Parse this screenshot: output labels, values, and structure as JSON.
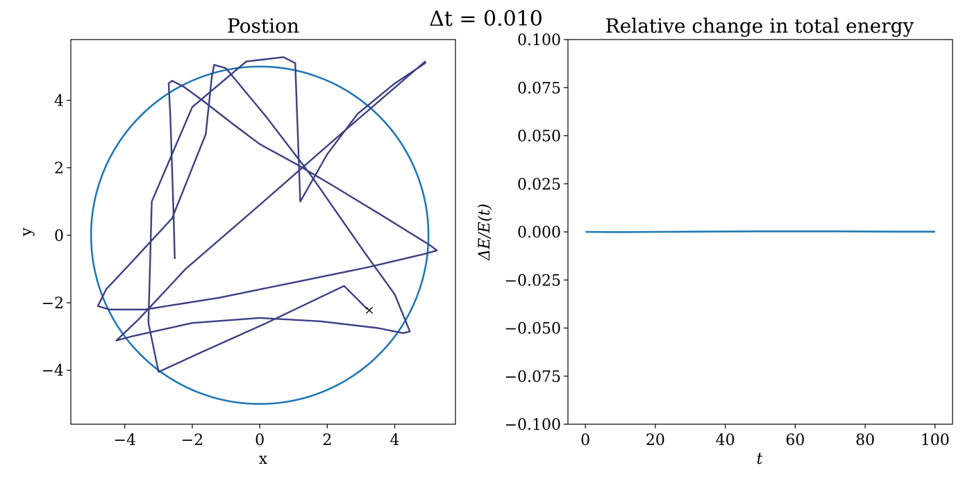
{
  "suptitle": "Δt = 0.010",
  "chart_data": [
    {
      "type": "line",
      "title": "Postion",
      "xlabel": "x",
      "ylabel": "y",
      "xlim": [
        -5.6,
        5.8
      ],
      "ylim": [
        -5.6,
        5.8
      ],
      "xticks": [
        -4,
        -2,
        0,
        2,
        4
      ],
      "yticks": [
        -4,
        -2,
        0,
        2,
        4
      ],
      "tick_labels_x": [
        "−4",
        "−2",
        "0",
        "2",
        "4"
      ],
      "tick_labels_y": [
        "−4",
        "−2",
        "0",
        "2",
        "4"
      ],
      "grid": false,
      "series": [
        {
          "kind": "circle",
          "color": "#1f77b4",
          "center": [
            0,
            0
          ],
          "radius": 5.0
        },
        {
          "kind": "trajectory",
          "color": "#3b3f82",
          "x": [
            -2.52,
            -2.55,
            -2.6,
            -2.65,
            -2.7,
            -2.6,
            -2.25,
            -1.7,
            -0.8,
            0.0,
            1.1,
            2.2,
            3.6,
            5.05,
            5.25,
            4.9,
            3.2,
            1.0,
            -1.2,
            -3.4,
            -4.45,
            -4.8,
            -4.55,
            -3.8,
            -2.6,
            -1.6,
            -1.42,
            -1.35,
            -1.0,
            0.2,
            1.5,
            3.1,
            4.0,
            4.45,
            4.25,
            3.5,
            1.8,
            0.0,
            -2.0,
            -3.8,
            -4.25,
            -3.6,
            -2.2,
            0.0,
            2.4,
            4.9,
            4.9,
            4.0,
            2.9,
            2.0,
            1.2,
            1.05,
            0.7,
            -0.4,
            -2.0,
            -3.2,
            -3.3,
            -3.0,
            -1.8,
            0.2,
            2.5,
            3.2
          ],
          "y": [
            -0.7,
            0.5,
            2.0,
            3.5,
            4.5,
            4.58,
            4.4,
            4.0,
            3.3,
            2.7,
            2.1,
            1.45,
            0.6,
            -0.3,
            -0.45,
            -0.55,
            -0.95,
            -1.4,
            -1.85,
            -2.2,
            -2.2,
            -2.1,
            -1.6,
            -0.8,
            0.5,
            3.0,
            4.7,
            5.05,
            4.95,
            3.5,
            1.8,
            -0.5,
            -1.75,
            -2.85,
            -2.9,
            -2.75,
            -2.55,
            -2.45,
            -2.6,
            -3.0,
            -3.12,
            -2.5,
            -1.0,
            0.9,
            3.0,
            5.15,
            5.1,
            4.5,
            3.6,
            2.4,
            1.0,
            5.1,
            5.28,
            5.15,
            3.8,
            1.0,
            -2.6,
            -4.05,
            -3.5,
            -2.6,
            -1.5,
            -2.2
          ],
          "end_marker": {
            "x": 3.25,
            "y": -2.22,
            "symbol": "×",
            "color": "#d62728"
          }
        }
      ]
    },
    {
      "type": "line",
      "title": "Relative change in total energy",
      "xlabel": "t",
      "ylabel": "ΔE/E(t)",
      "xlim": [
        -5,
        105
      ],
      "ylim": [
        -0.1,
        0.1
      ],
      "xticks": [
        0,
        20,
        40,
        60,
        80,
        100
      ],
      "yticks": [
        -0.1,
        -0.075,
        -0.05,
        -0.025,
        0.0,
        0.025,
        0.05,
        0.075,
        0.1
      ],
      "tick_labels_x": [
        "0",
        "20",
        "40",
        "60",
        "80",
        "100"
      ],
      "tick_labels_y": [
        "−0.100",
        "−0.075",
        "−0.050",
        "−0.025",
        "0.000",
        "0.025",
        "0.050",
        "0.075",
        "0.100"
      ],
      "grid": false,
      "series": [
        {
          "color": "#1f77b4",
          "x": [
            0,
            10,
            20,
            30,
            40,
            50,
            60,
            70,
            80,
            90,
            100
          ],
          "y": [
            0.0,
            -0.0001,
            0.0,
            0.0001,
            0.0002,
            0.0003,
            0.0003,
            0.0003,
            0.0002,
            0.0001,
            0.0001
          ]
        }
      ]
    }
  ]
}
